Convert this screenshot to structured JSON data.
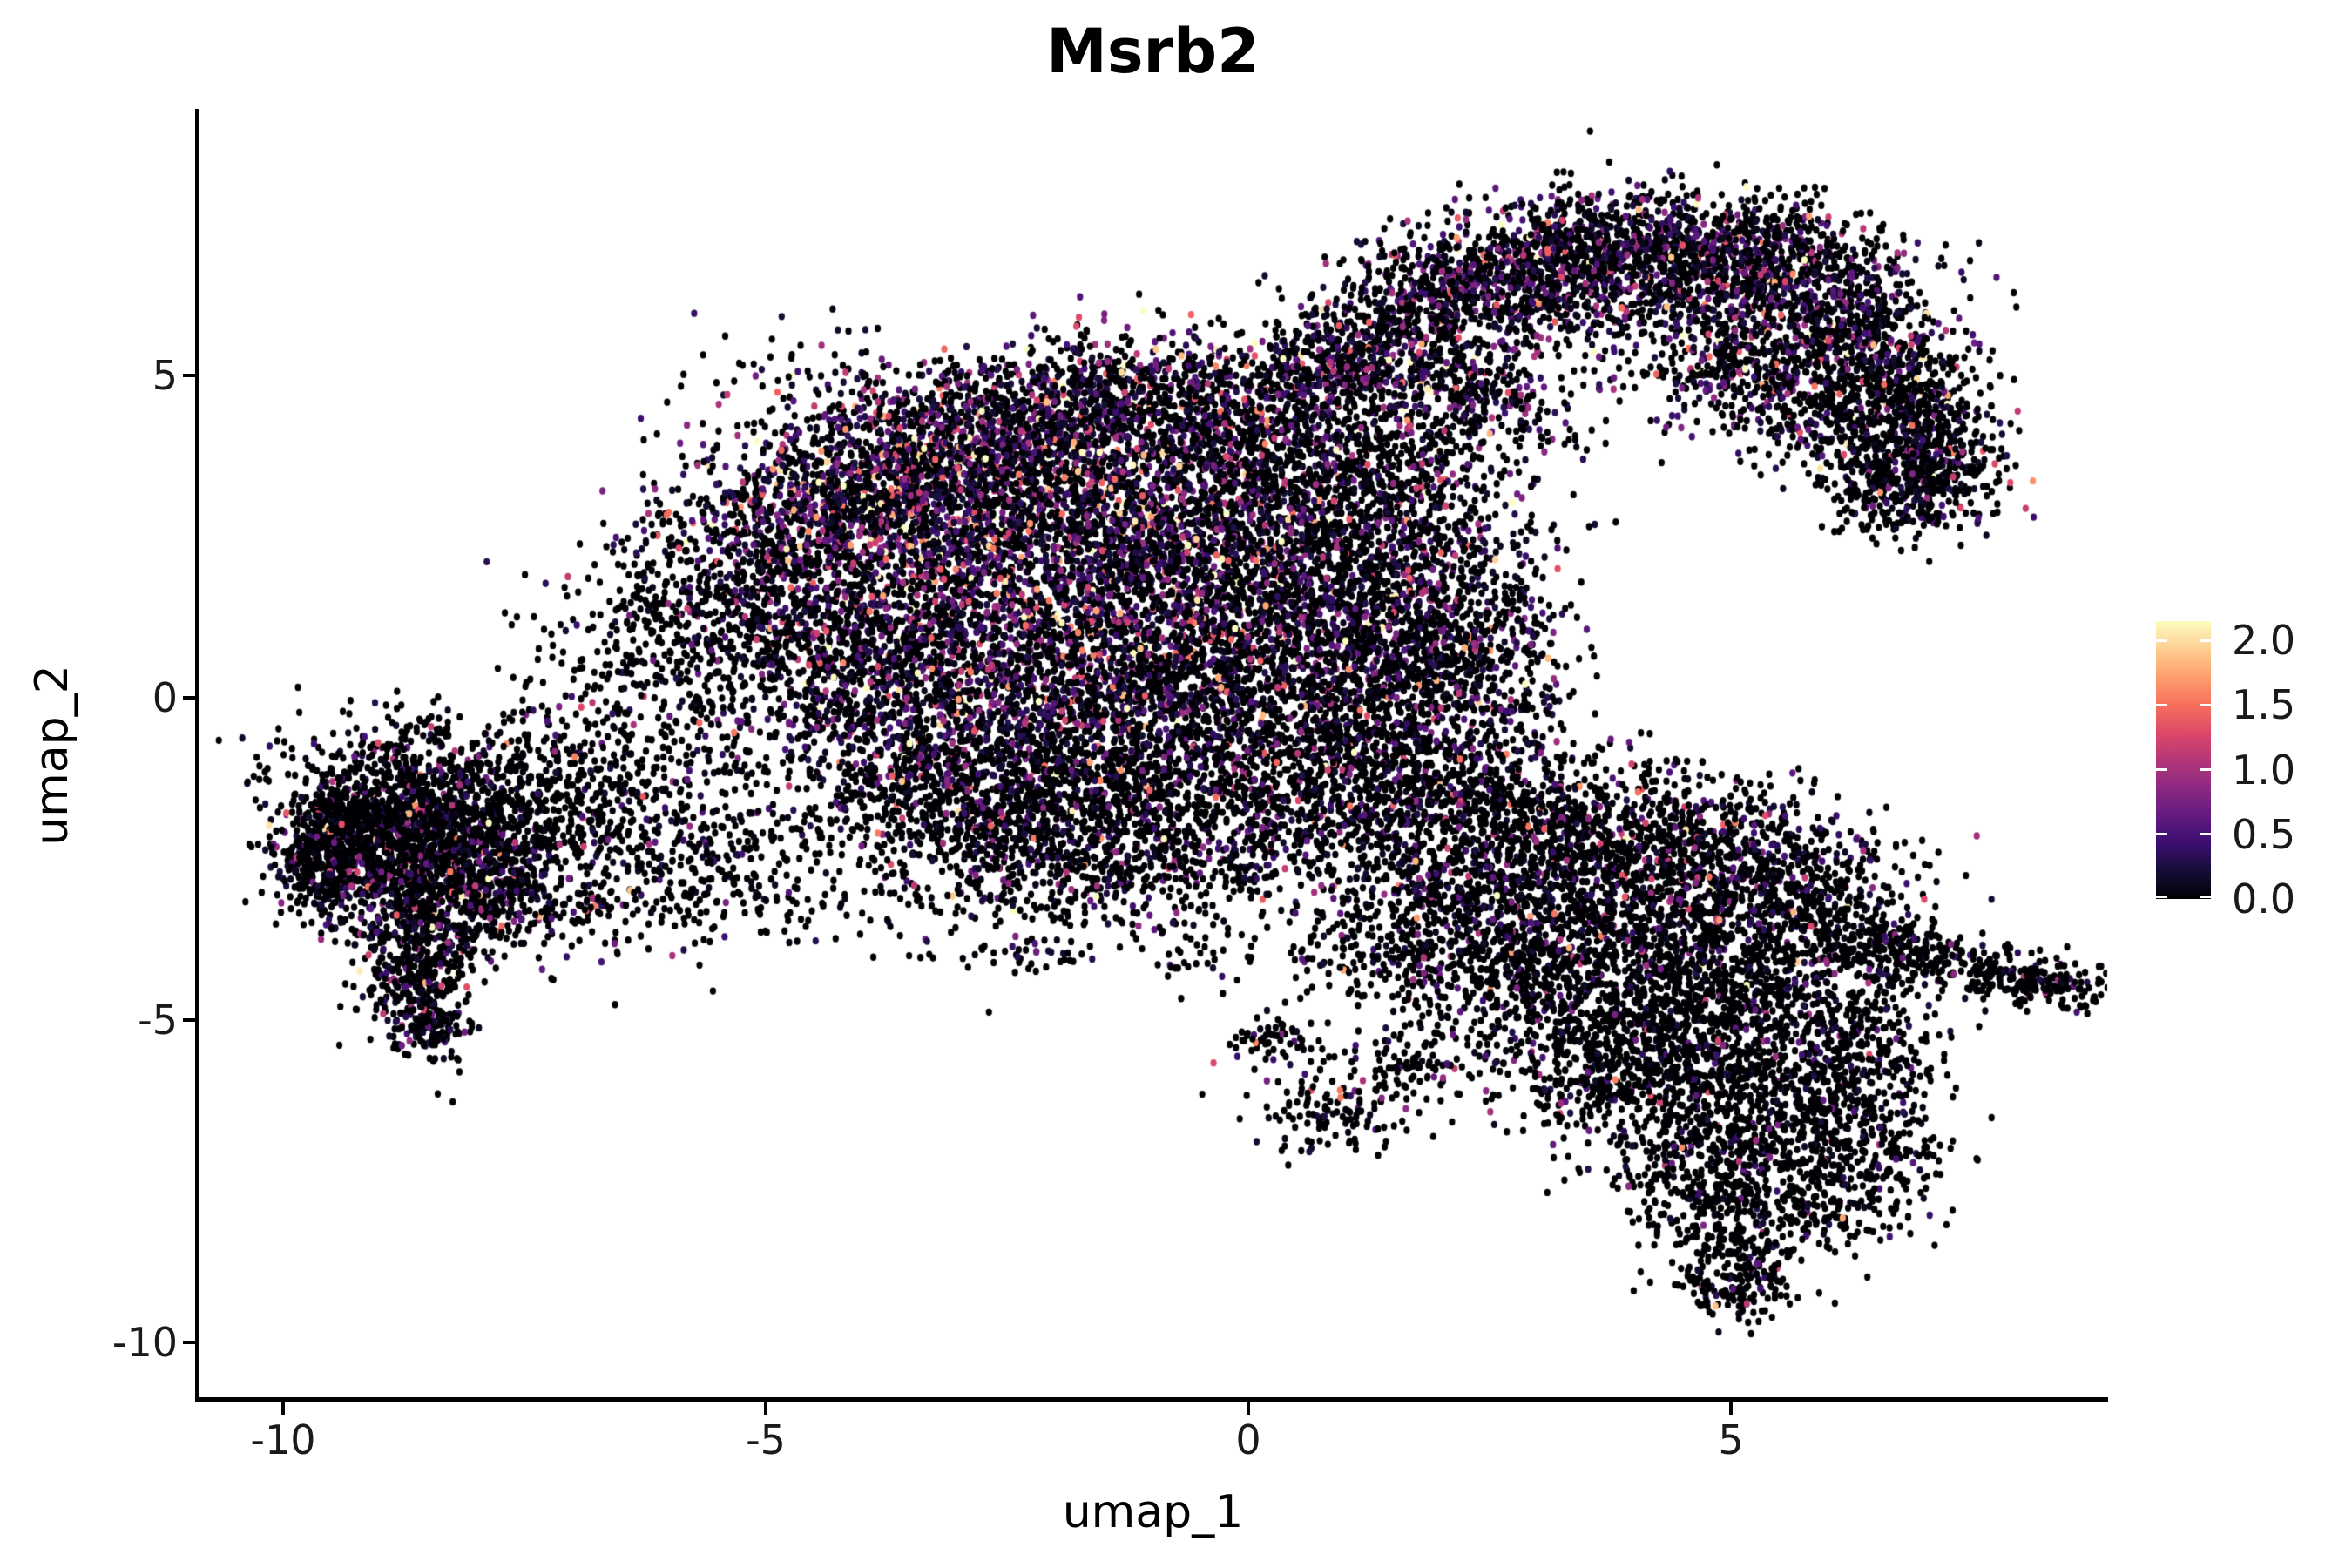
{
  "title": "Msrb2",
  "axes": {
    "x": {
      "label": "umap_1",
      "ticks": [
        "-10",
        "-5",
        "0",
        "5"
      ],
      "tick_values": [
        -10,
        -5,
        0,
        5
      ],
      "range": [
        -10.88,
        8.9
      ]
    },
    "y": {
      "label": "umap_2",
      "ticks": [
        "5",
        "0",
        "-5",
        "-10"
      ],
      "tick_values": [
        5,
        0,
        -5,
        -10
      ],
      "range": [
        -10.88,
        9.09
      ]
    }
  },
  "legend": {
    "labels": [
      "2.0",
      "1.5",
      "1.0",
      "0.5",
      "0.0"
    ],
    "values": [
      2.0,
      1.5,
      1.0,
      0.5,
      0.0
    ],
    "vmin": 0.0,
    "vmax": 2.15,
    "colormap": "magma"
  },
  "chart_data": {
    "type": "scatter",
    "title": "Msrb2",
    "xlabel": "umap_1",
    "ylabel": "umap_2",
    "xlim": [
      -10.88,
      8.9
    ],
    "ylim": [
      -10.88,
      9.09
    ],
    "x_ticks": [
      -10,
      -5,
      0,
      5
    ],
    "y_ticks": [
      5,
      0,
      -5,
      -10
    ],
    "grid": false,
    "legend_position": "right",
    "colorbar": {
      "min": 0.0,
      "max": 2.15,
      "tick_values": [
        0.0,
        0.5,
        1.0,
        1.5,
        2.0
      ]
    },
    "colormap_stops": [
      [
        0.0,
        "#000004"
      ],
      [
        0.1,
        "#140e36"
      ],
      [
        0.2,
        "#3b0f70"
      ],
      [
        0.3,
        "#641a80"
      ],
      [
        0.4,
        "#8c2981"
      ],
      [
        0.5,
        "#b5367a"
      ],
      [
        0.6,
        "#de4968"
      ],
      [
        0.7,
        "#f7705c"
      ],
      [
        0.8,
        "#fe9f6d"
      ],
      [
        0.9,
        "#fecf92"
      ],
      [
        1.0,
        "#fcfdbf"
      ]
    ],
    "point_radius_px": {
      "rx": 3.6,
      "ry": 4.2
    },
    "seed": 20240607,
    "expression_profiles": {
      "A": {
        "p_zero": 0.42,
        "mean": 0.6
      },
      "B": {
        "p_zero": 0.55,
        "mean": 0.5
      },
      "C": {
        "p_zero": 0.72,
        "mean": 0.45
      },
      "D": {
        "p_zero": 0.84,
        "mean": 0.35
      }
    },
    "cluster_fields": [
      "x",
      "y",
      "sx",
      "sy",
      "rot_deg",
      "n",
      "profile"
    ],
    "clusters": [
      [
        1.0,
        5.3,
        0.5,
        0.45,
        0,
        350,
        "B"
      ],
      [
        1.9,
        6.1,
        0.55,
        0.5,
        0,
        420,
        "B"
      ],
      [
        2.9,
        6.8,
        0.6,
        0.45,
        0,
        450,
        "B"
      ],
      [
        4.0,
        7.0,
        0.65,
        0.42,
        0,
        480,
        "B"
      ],
      [
        5.0,
        6.7,
        0.6,
        0.45,
        0,
        480,
        "B"
      ],
      [
        5.9,
        6.1,
        0.5,
        0.5,
        0,
        450,
        "B"
      ],
      [
        6.5,
        5.2,
        0.45,
        0.55,
        0,
        430,
        "C"
      ],
      [
        6.9,
        4.2,
        0.4,
        0.55,
        0,
        420,
        "C"
      ],
      [
        6.9,
        3.3,
        0.45,
        0.4,
        0,
        380,
        "C"
      ],
      [
        2.2,
        4.8,
        0.7,
        0.45,
        -20,
        380,
        "B"
      ],
      [
        3.4,
        6.2,
        0.8,
        0.4,
        0,
        350,
        "B"
      ],
      [
        5.0,
        5.2,
        0.55,
        0.45,
        0,
        300,
        "B"
      ],
      [
        1.3,
        3.9,
        0.8,
        0.7,
        0,
        260,
        "C"
      ],
      [
        5.6,
        7.2,
        0.8,
        0.3,
        -20,
        200,
        "C"
      ],
      [
        5.8,
        4.4,
        0.7,
        0.45,
        -30,
        260,
        "C"
      ],
      [
        -4.6,
        2.9,
        0.7,
        0.55,
        -20,
        520,
        "A"
      ],
      [
        -3.6,
        3.5,
        0.7,
        0.55,
        -15,
        560,
        "A"
      ],
      [
        -2.5,
        4.0,
        0.7,
        0.5,
        -10,
        560,
        "A"
      ],
      [
        -1.6,
        4.7,
        0.6,
        0.5,
        0,
        480,
        "B"
      ],
      [
        -0.5,
        4.3,
        0.6,
        0.5,
        0,
        420,
        "B"
      ],
      [
        0.4,
        3.6,
        0.6,
        0.55,
        0,
        380,
        "B"
      ],
      [
        -3.2,
        2.6,
        0.8,
        0.7,
        0,
        600,
        "A"
      ],
      [
        -1.9,
        2.9,
        0.8,
        0.65,
        0,
        600,
        "A"
      ],
      [
        -0.7,
        2.6,
        0.75,
        0.65,
        0,
        560,
        "B"
      ],
      [
        -4.4,
        1.4,
        0.7,
        0.6,
        0,
        520,
        "B"
      ],
      [
        -3.0,
        1.2,
        0.85,
        0.7,
        0,
        620,
        "A"
      ],
      [
        -1.5,
        1.4,
        0.8,
        0.7,
        0,
        600,
        "A"
      ],
      [
        -0.2,
        1.5,
        0.8,
        0.65,
        0,
        540,
        "B"
      ],
      [
        1.0,
        2.3,
        0.7,
        0.7,
        0,
        480,
        "B"
      ],
      [
        -4.0,
        0.0,
        0.75,
        0.6,
        0,
        480,
        "B"
      ],
      [
        -2.6,
        -0.2,
        0.85,
        0.65,
        0,
        580,
        "B"
      ],
      [
        -1.2,
        -0.1,
        0.8,
        0.6,
        0,
        540,
        "B"
      ],
      [
        0.2,
        0.2,
        0.8,
        0.6,
        0,
        500,
        "B"
      ],
      [
        1.4,
        0.9,
        0.7,
        0.6,
        0,
        420,
        "B"
      ],
      [
        -3.3,
        -1.4,
        0.8,
        0.55,
        0,
        460,
        "C"
      ],
      [
        -1.9,
        -1.5,
        0.8,
        0.55,
        0,
        460,
        "C"
      ],
      [
        -0.5,
        -1.3,
        0.8,
        0.55,
        0,
        440,
        "C"
      ],
      [
        0.9,
        -0.7,
        0.7,
        0.55,
        0,
        380,
        "C"
      ],
      [
        2.1,
        1.5,
        0.6,
        0.8,
        0,
        400,
        "B"
      ],
      [
        2.2,
        0.2,
        0.6,
        0.7,
        0,
        360,
        "C"
      ],
      [
        -2.5,
        -2.4,
        0.9,
        0.5,
        0,
        340,
        "C"
      ],
      [
        -0.9,
        -2.4,
        0.9,
        0.5,
        0,
        320,
        "C"
      ],
      [
        0.8,
        -2.0,
        0.8,
        0.55,
        0,
        300,
        "C"
      ],
      [
        -3.3,
        4.6,
        1.2,
        0.5,
        -15,
        260,
        "B"
      ],
      [
        -5.6,
        1.8,
        0.6,
        0.9,
        0,
        300,
        "C"
      ],
      [
        -6.3,
        -0.6,
        0.9,
        1.0,
        0,
        280,
        "D"
      ],
      [
        -6.8,
        -2.2,
        0.9,
        0.8,
        0,
        300,
        "D"
      ],
      [
        -5.3,
        -2.6,
        0.9,
        0.7,
        0,
        280,
        "D"
      ],
      [
        -5.8,
        0.9,
        0.8,
        0.6,
        0,
        200,
        "D"
      ],
      [
        -1.5,
        -3.3,
        1.3,
        0.5,
        0,
        180,
        "D"
      ],
      [
        0.6,
        2.0,
        0.7,
        0.8,
        0,
        220,
        "C"
      ],
      [
        1.6,
        3.2,
        0.6,
        0.6,
        0,
        200,
        "C"
      ],
      [
        0.2,
        4.9,
        0.7,
        0.45,
        0,
        160,
        "C"
      ],
      [
        -9.2,
        -2.2,
        0.45,
        0.5,
        0,
        600,
        "C"
      ],
      [
        -8.7,
        -1.7,
        0.5,
        0.45,
        0,
        500,
        "C"
      ],
      [
        -8.6,
        -2.9,
        0.5,
        0.5,
        0,
        520,
        "C"
      ],
      [
        -9.6,
        -2.5,
        0.25,
        0.45,
        0,
        260,
        "C"
      ],
      [
        -8.0,
        -2.3,
        0.5,
        0.5,
        0,
        380,
        "C"
      ],
      [
        -7.9,
        -3.3,
        0.6,
        0.45,
        0,
        300,
        "C"
      ],
      [
        -8.6,
        -4.3,
        0.28,
        0.5,
        0,
        320,
        "C"
      ],
      [
        -8.5,
        -5.1,
        0.22,
        0.25,
        0,
        130,
        "C"
      ],
      [
        -8.6,
        -0.9,
        0.7,
        0.4,
        0,
        220,
        "D"
      ],
      [
        -7.3,
        -1.5,
        0.6,
        0.5,
        0,
        200,
        "D"
      ],
      [
        1.6,
        -1.3,
        0.6,
        0.6,
        0,
        340,
        "C"
      ],
      [
        2.6,
        -1.9,
        0.7,
        0.6,
        0,
        420,
        "C"
      ],
      [
        3.7,
        -1.9,
        0.7,
        0.55,
        0,
        420,
        "C"
      ],
      [
        4.8,
        -2.4,
        0.7,
        0.55,
        0,
        420,
        "C"
      ],
      [
        5.7,
        -3.0,
        0.6,
        0.55,
        0,
        400,
        "C"
      ],
      [
        2.2,
        -3.1,
        0.7,
        0.6,
        0,
        400,
        "C"
      ],
      [
        3.3,
        -3.3,
        0.75,
        0.6,
        0,
        440,
        "C"
      ],
      [
        4.5,
        -3.6,
        0.7,
        0.6,
        0,
        420,
        "C"
      ],
      [
        2.9,
        -4.5,
        0.7,
        0.6,
        0,
        380,
        "D"
      ],
      [
        4.1,
        -4.9,
        0.7,
        0.6,
        0,
        400,
        "D"
      ],
      [
        5.3,
        -4.6,
        0.6,
        0.55,
        0,
        380,
        "D"
      ],
      [
        3.6,
        -5.8,
        0.6,
        0.55,
        0,
        340,
        "D"
      ],
      [
        4.8,
        -6.0,
        0.6,
        0.55,
        0,
        340,
        "D"
      ],
      [
        5.8,
        -6.3,
        0.55,
        0.6,
        0,
        320,
        "D"
      ],
      [
        6.3,
        -5.4,
        0.45,
        0.5,
        0,
        260,
        "D"
      ],
      [
        6.6,
        -3.9,
        0.5,
        0.28,
        -12,
        220,
        "D"
      ],
      [
        7.5,
        -4.2,
        0.5,
        0.22,
        -10,
        170,
        "D"
      ],
      [
        8.3,
        -4.5,
        0.35,
        0.16,
        -8,
        110,
        "D"
      ],
      [
        4.7,
        -7.3,
        0.5,
        0.5,
        0,
        280,
        "D"
      ],
      [
        5.0,
        -8.3,
        0.4,
        0.5,
        0,
        240,
        "D"
      ],
      [
        5.1,
        -9.1,
        0.3,
        0.3,
        0,
        130,
        "D"
      ],
      [
        1.4,
        -4.0,
        0.5,
        0.4,
        0,
        180,
        "D"
      ],
      [
        6.5,
        -7.0,
        0.45,
        0.5,
        0,
        180,
        "D"
      ],
      [
        6.0,
        -7.8,
        0.45,
        0.45,
        0,
        170,
        "D"
      ],
      [
        0.9,
        -6.3,
        0.45,
        0.4,
        0,
        150,
        "D"
      ],
      [
        0.3,
        -5.3,
        0.25,
        0.2,
        0,
        60,
        "D"
      ],
      [
        1.8,
        -5.6,
        0.3,
        0.25,
        0,
        70,
        "D"
      ],
      [
        -0.7,
        -4.1,
        0.15,
        0.12,
        0,
        14,
        "D"
      ],
      [
        -2.2,
        -4.0,
        0.3,
        0.15,
        0,
        25,
        "D"
      ]
    ]
  }
}
